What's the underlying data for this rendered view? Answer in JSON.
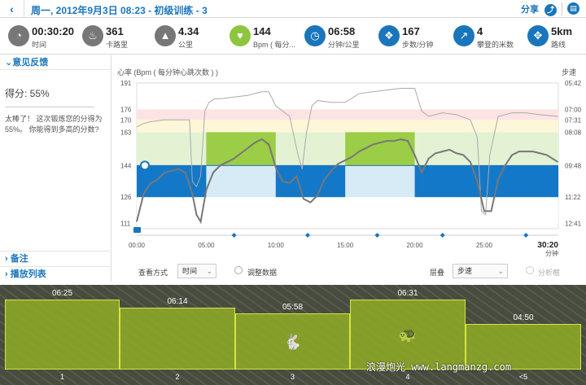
{
  "titlebar": {
    "back_icon": "chevron-left-icon",
    "title": "周一, 2012年9月3日 08:23 - 初级训练 - 3",
    "share_label": "分享",
    "share_icon": "share-icon",
    "print_icon": "print-icon"
  },
  "stats": [
    {
      "icon": "clock-icon",
      "glyph": "◔",
      "value": "00:30:20",
      "label": "时间"
    },
    {
      "icon": "flame-icon",
      "glyph": "♨",
      "value": "361",
      "label": "卡路里"
    },
    {
      "icon": "road-icon",
      "glyph": "▲",
      "value": "4.34",
      "label": "公里"
    },
    {
      "icon": "heart-icon",
      "glyph": "♥",
      "value": "144",
      "label": "Bpm ( 每分..."
    },
    {
      "icon": "speedometer-icon",
      "glyph": "◷",
      "value": "06:58",
      "label": "分钟/公里"
    },
    {
      "icon": "footsteps-icon",
      "glyph": "❖",
      "value": "167",
      "label": "步数/分钟"
    },
    {
      "icon": "climb-icon",
      "glyph": "↗",
      "value": "4",
      "label": "攀登的米数"
    },
    {
      "icon": "route-icon",
      "glyph": "✥",
      "value": "5km",
      "label": "路线"
    }
  ],
  "sidebar": {
    "feedback_header": "意见反馈",
    "score": "得分: 55%",
    "message": "太棒了！ 这次锻炼您的分得为 55%。 你能得到多高的分数?",
    "notes_label": "备注",
    "playlist_label": "播放列表"
  },
  "chart": {
    "hr_title": "心率 (Bpm ( 每分钟心跳次数 ) )",
    "pace_title": "步速",
    "hr_ticks": [
      "191",
      "176",
      "170",
      "163",
      "144",
      "126",
      "111"
    ],
    "pace_ticks": [
      "05:42",
      "07:00",
      "07:31",
      "08:08",
      "09:48",
      "11:22",
      "12:41"
    ],
    "time_ticks": [
      "00:00",
      "05:00",
      "10:00",
      "15:00",
      "20:00",
      "25:00"
    ],
    "end_time": "30:20",
    "end_unit": "分钟",
    "view_label": "查看方式",
    "view_value": "时间",
    "adjust_label": "调整数据",
    "layer_label": "层叠",
    "layer_value": "步速",
    "analysis_label": "分析框"
  },
  "chart_data": {
    "type": "line",
    "x_unit": "minutes",
    "xlim": [
      0,
      30.33
    ],
    "heart_rate_ylim": [
      108,
      191
    ],
    "heart_rate_series": {
      "x": [
        0,
        0.5,
        1,
        1.5,
        2,
        2.5,
        3,
        3.5,
        4,
        4.3,
        4.6,
        5,
        5.5,
        6,
        6.5,
        7,
        7.5,
        8,
        8.5,
        9,
        9.5,
        10,
        10.5,
        11,
        11.5,
        12,
        12.5,
        13,
        13.5,
        14,
        14.5,
        15,
        15.5,
        16,
        16.5,
        17,
        17.5,
        18,
        18.5,
        19,
        19.5,
        20,
        20.5,
        21,
        21.5,
        22,
        22.5,
        23,
        23.5,
        24,
        24.5,
        25,
        25.5,
        26,
        26.5,
        27,
        27.5,
        28,
        28.5,
        29,
        29.5,
        30.3
      ],
      "y": [
        112,
        128,
        134,
        136,
        140,
        141,
        142,
        140,
        128,
        116,
        112,
        130,
        140,
        144,
        146,
        148,
        151,
        154,
        157,
        159,
        156,
        143,
        135,
        134,
        138,
        125,
        123,
        127,
        136,
        141,
        145,
        147,
        149,
        152,
        154,
        156,
        157,
        158,
        158,
        159,
        158,
        150,
        140,
        148,
        151,
        152,
        153,
        151,
        150,
        146,
        135,
        118,
        118,
        136,
        144,
        150,
        152,
        152,
        152,
        151,
        150,
        146
      ]
    },
    "pace_line_hr_equiv": {
      "x": [
        0,
        0.5,
        1,
        2,
        3,
        3.8,
        4,
        4.3,
        4.6,
        4.9,
        5.2,
        5.6,
        6,
        7,
        8,
        9,
        9.5,
        10,
        11,
        11.6,
        11.9,
        12.2,
        12.6,
        13,
        14,
        15,
        16,
        17,
        18,
        19,
        20,
        20.5,
        21,
        22,
        23,
        24,
        24.5,
        24.8,
        25.1,
        25.4,
        26,
        27,
        28,
        29,
        30.3
      ],
      "y": [
        166,
        168,
        169,
        170,
        170,
        170,
        135,
        132,
        138,
        175,
        180,
        182,
        182,
        183,
        184,
        186,
        186,
        178,
        172,
        150,
        142,
        162,
        178,
        181,
        180,
        180,
        185,
        186,
        187,
        188,
        188,
        175,
        172,
        174,
        173,
        170,
        160,
        118,
        116,
        150,
        172,
        174,
        174,
        173,
        172
      ]
    },
    "zones_hr": [
      {
        "from": 111,
        "to": 126,
        "color": "#ffffff"
      },
      {
        "from": 126,
        "to": 144,
        "color": "#d7ebf7"
      },
      {
        "from": 144,
        "to": 163,
        "color": "#e4f2d4"
      },
      {
        "from": 163,
        "to": 170,
        "color": "#fdf6d8"
      },
      {
        "from": 170,
        "to": 176,
        "color": "#fde4e4"
      }
    ],
    "segments": [
      {
        "start": 0,
        "end": 5,
        "kind": "blue"
      },
      {
        "start": 5,
        "end": 10,
        "kind": "green"
      },
      {
        "start": 10,
        "end": 15,
        "kind": "blue"
      },
      {
        "start": 15,
        "end": 20,
        "kind": "green"
      },
      {
        "start": 20,
        "end": 30.33,
        "kind": "blue"
      }
    ],
    "km_markers": [
      7,
      12.3,
      17.3,
      22,
      28
    ],
    "colors": {
      "hr_line": "#777777",
      "pace_line": "#aaaaaa",
      "blue_band": "#1478c8",
      "green_band": "#9ccd46",
      "light_blue": "#d7ebf7"
    }
  },
  "laps": [
    {
      "pace": "06:25",
      "num": "1",
      "icon": ""
    },
    {
      "pace": "06:14",
      "num": "2",
      "icon": ""
    },
    {
      "pace": "05:58",
      "num": "3",
      "icon": "rabbit-icon"
    },
    {
      "pace": "06:31",
      "num": "4",
      "icon": "turtle-icon"
    },
    {
      "pace": "04:50",
      "num": "<5",
      "icon": ""
    }
  ],
  "lap_relative_height": [
    1.0,
    0.88,
    0.8,
    1.0,
    0.65
  ],
  "watermark": "浪漫炮光 www.langmanzg.com"
}
